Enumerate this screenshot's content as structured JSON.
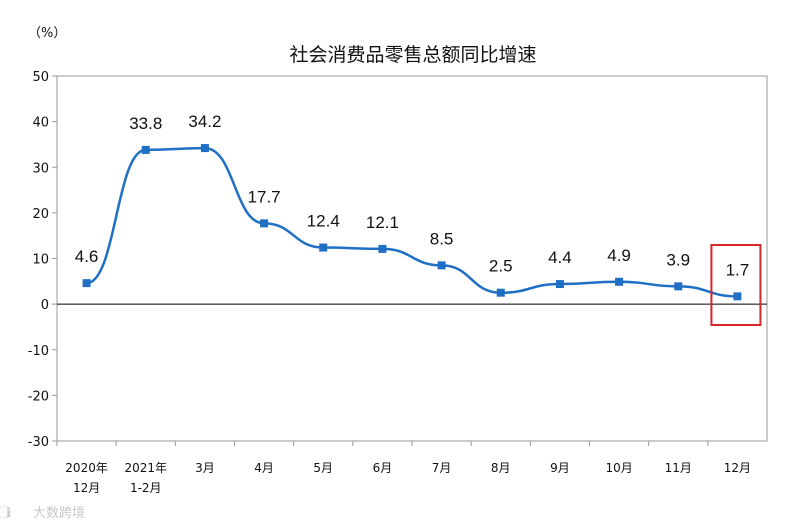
{
  "chart_data": {
    "type": "line",
    "title": "社会消费品零售总额同比增速",
    "unit_label": "（%）",
    "ylim": [
      -30,
      50
    ],
    "yticks": [
      -30,
      -20,
      -10,
      0,
      10,
      20,
      30,
      40,
      50
    ],
    "categories": [
      [
        "2020年",
        "12月"
      ],
      [
        "2021年",
        "1-2月"
      ],
      [
        "3月"
      ],
      [
        "4月"
      ],
      [
        "5月"
      ],
      [
        "6月"
      ],
      [
        "7月"
      ],
      [
        "8月"
      ],
      [
        "9月"
      ],
      [
        "10月"
      ],
      [
        "11月"
      ],
      [
        "12月"
      ]
    ],
    "series": [
      {
        "values": [
          4.6,
          33.8,
          34.2,
          17.7,
          12.4,
          12.1,
          8.5,
          2.5,
          4.4,
          4.9,
          3.9,
          1.7
        ]
      }
    ],
    "data_labels": [
      "4.6",
      "33.8",
      "34.2",
      "17.7",
      "12.4",
      "12.1",
      "8.5",
      "2.5",
      "4.4",
      "4.9",
      "3.9",
      "1.7"
    ],
    "highlight_index": 11,
    "grid": false,
    "line_color": "#1f6fc5",
    "highlight_color": "#d62728"
  },
  "watermark": "大数跨境"
}
